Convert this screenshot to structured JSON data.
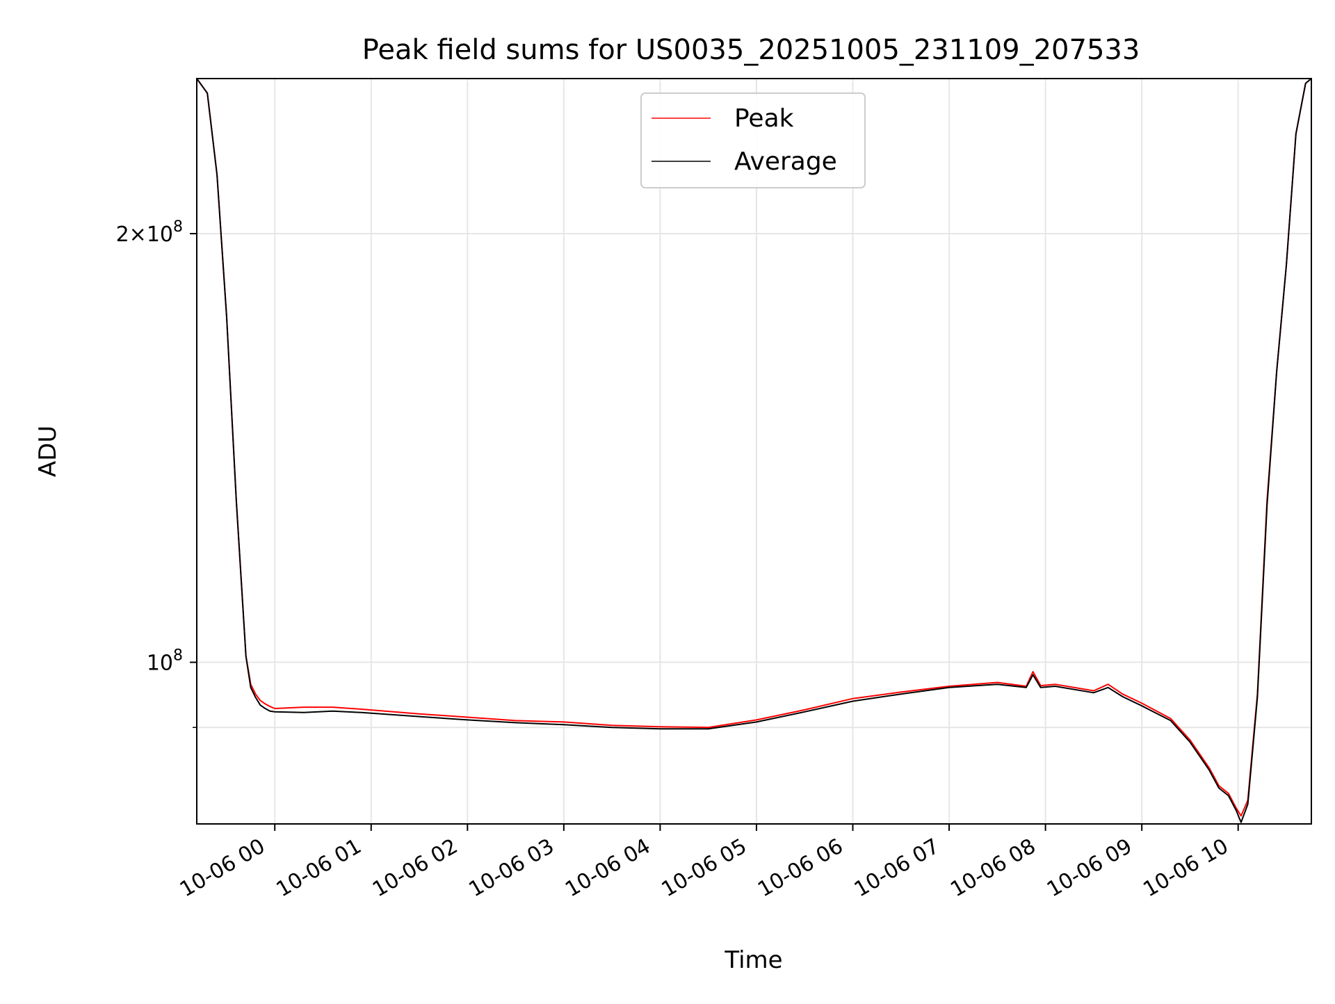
{
  "chart_data": {
    "type": "line",
    "title": "Peak field sums for US0035_20251005_231109_207533",
    "xlabel": "Time",
    "ylabel": "ADU",
    "yscale": "log",
    "ylim": [
      77000000,
      257000000
    ],
    "xlim": [
      -0.81,
      10.76
    ],
    "x_unit": "hours since 10-06 00:00",
    "grid": true,
    "legend_position": "top-center",
    "x_ticks": [
      {
        "value": 0,
        "label": "10-06 00"
      },
      {
        "value": 1,
        "label": "10-06 01"
      },
      {
        "value": 2,
        "label": "10-06 02"
      },
      {
        "value": 3,
        "label": "10-06 03"
      },
      {
        "value": 4,
        "label": "10-06 04"
      },
      {
        "value": 5,
        "label": "10-06 05"
      },
      {
        "value": 6,
        "label": "10-06 06"
      },
      {
        "value": 7,
        "label": "10-06 07"
      },
      {
        "value": 8,
        "label": "10-06 08"
      },
      {
        "value": 9,
        "label": "10-06 09"
      },
      {
        "value": 10,
        "label": "10-06 10"
      }
    ],
    "y_major_ticks": [
      {
        "value": 100000000,
        "base": "10",
        "exponent": "8",
        "mantissa": ""
      },
      {
        "value": 200000000,
        "base": "10",
        "exponent": "8",
        "mantissa": "2"
      }
    ],
    "y_minor_ticks": [
      90000000
    ],
    "series": [
      {
        "name": "Peak",
        "color": "#ff0000",
        "x": [
          -0.81,
          -0.7,
          -0.6,
          -0.5,
          -0.4,
          -0.3,
          -0.25,
          -0.2,
          -0.15,
          -0.1,
          -0.05,
          0,
          0.3,
          0.6,
          0.9,
          1.5,
          2.0,
          2.5,
          3.0,
          3.5,
          4.0,
          4.5,
          5.0,
          5.5,
          6.0,
          6.5,
          7.0,
          7.5,
          7.8,
          7.87,
          7.95,
          8.1,
          8.5,
          8.65,
          8.8,
          9.0,
          9.3,
          9.5,
          9.7,
          9.8,
          9.9,
          9.98,
          10.03,
          10.1,
          10.2,
          10.3,
          10.4,
          10.5,
          10.6,
          10.7,
          10.76
        ],
        "y": [
          257000000,
          251000000,
          220000000,
          175000000,
          130000000,
          101000000,
          96500000,
          95000000,
          94000000,
          93500000,
          93100000,
          92800000,
          93000000,
          93000000,
          92700000,
          92000000,
          91500000,
          91000000,
          90800000,
          90300000,
          90100000,
          90000000,
          91100000,
          92600000,
          94300000,
          95300000,
          96200000,
          96800000,
          96200000,
          98500000,
          96300000,
          96500000,
          95500000,
          96500000,
          95000000,
          93600000,
          91300000,
          88200000,
          84300000,
          81900000,
          80900000,
          79000000,
          78000000,
          80000000,
          95000000,
          130000000,
          160000000,
          190000000,
          235000000,
          255000000,
          257000000
        ]
      },
      {
        "name": "Average",
        "color": "#000000",
        "x": [
          -0.81,
          -0.7,
          -0.6,
          -0.5,
          -0.4,
          -0.3,
          -0.25,
          -0.2,
          -0.15,
          -0.1,
          -0.05,
          0,
          0.3,
          0.6,
          0.9,
          1.5,
          2.0,
          2.5,
          3.0,
          3.5,
          4.0,
          4.5,
          5.0,
          5.5,
          6.0,
          6.5,
          7.0,
          7.5,
          7.8,
          7.87,
          7.95,
          8.1,
          8.5,
          8.65,
          8.8,
          9.0,
          9.3,
          9.5,
          9.7,
          9.8,
          9.9,
          9.98,
          10.03,
          10.1,
          10.2,
          10.3,
          10.4,
          10.5,
          10.6,
          10.7,
          10.76
        ],
        "y": [
          257000000,
          251000000,
          220000000,
          175000000,
          130000000,
          101000000,
          96000000,
          94500000,
          93300000,
          92800000,
          92400000,
          92300000,
          92200000,
          92400000,
          92200000,
          91600000,
          91100000,
          90700000,
          90400000,
          90000000,
          89800000,
          89800000,
          90800000,
          92300000,
          93900000,
          95000000,
          96000000,
          96500000,
          96000000,
          98000000,
          96000000,
          96200000,
          95200000,
          96000000,
          94600000,
          93200000,
          91000000,
          87900000,
          84000000,
          81600000,
          80600000,
          78700000,
          77200000,
          79500000,
          94500000,
          129000000,
          160000000,
          190000000,
          235000000,
          255000000,
          257000000
        ]
      }
    ]
  }
}
